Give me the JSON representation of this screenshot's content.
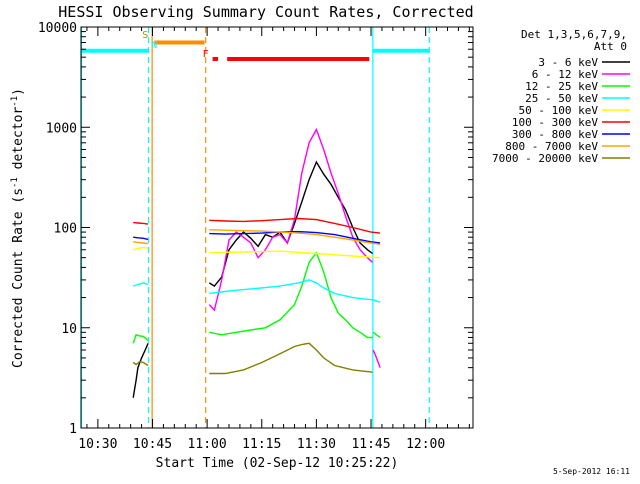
{
  "chart_data": {
    "type": "line",
    "title": "HESSI Observing Summary Count Rates, Corrected",
    "xlabel": "Start Time (02-Sep-12 10:25:22)",
    "ylabel": "Corrected Count Rate (s⁻¹ detector⁻¹)",
    "ylabel_parts": [
      "Corrected Count Rate (s",
      "-1",
      " detector",
      "-1",
      ")"
    ],
    "x_range_min": [
      25.37,
      133.0
    ],
    "ylim": [
      1,
      10000
    ],
    "y_scale": "log",
    "x_ticks": [
      {
        "min": 30,
        "label": "10:30"
      },
      {
        "min": 45,
        "label": "10:45"
      },
      {
        "min": 60,
        "label": "11:00"
      },
      {
        "min": 75,
        "label": "11:15"
      },
      {
        "min": 90,
        "label": "11:30"
      },
      {
        "min": 105,
        "label": "11:45"
      },
      {
        "min": 120,
        "label": "12:00"
      }
    ],
    "y_ticks": [
      {
        "value": 1,
        "label": "1"
      },
      {
        "value": 10,
        "label": "10"
      },
      {
        "value": 100,
        "label": "100"
      },
      {
        "value": 1000,
        "label": "1000"
      },
      {
        "value": 10000,
        "label": "10000"
      }
    ],
    "legend_title": [
      "Det 1,3,5,6,7,9,",
      "Att 0"
    ],
    "legend_position": "right",
    "footer": "5-Sep-2012 16:11",
    "series": [
      {
        "name": "3 - 6 keV",
        "color": "#000000",
        "segments": [
          {
            "x": [
              39.7,
              40.5,
              41.0,
              42.0,
              43.0,
              43.8
            ],
            "y": [
              2,
              3,
              4,
              5,
              6,
              7
            ]
          },
          {
            "x": [
              60.6,
              62,
              64,
              66,
              68,
              70,
              72,
              74,
              76,
              78,
              80,
              82,
              84,
              86,
              88,
              90,
              92,
              94,
              96,
              98,
              100,
              102,
              104,
              105.4
            ],
            "y": [
              28,
              26,
              32,
              60,
              75,
              90,
              78,
              65,
              85,
              80,
              90,
              70,
              110,
              180,
              300,
              450,
              340,
              270,
              200,
              150,
              100,
              70,
              60,
              55
            ]
          }
        ]
      },
      {
        "name": "6 - 12 keV",
        "color": "#ff00ff",
        "segments": [
          {
            "x": [
              60.6,
              62,
              64,
              66,
              68,
              70,
              72,
              74,
              76,
              78,
              80,
              82,
              84,
              86,
              88,
              90,
              92,
              94,
              96,
              98,
              100,
              102,
              104,
              105.4
            ],
            "y": [
              17,
              15,
              30,
              75,
              90,
              80,
              70,
              50,
              60,
              80,
              85,
              70,
              120,
              350,
              700,
              950,
              600,
              350,
              220,
              130,
              80,
              60,
              50,
              45
            ]
          },
          {
            "x": [
              105.6,
              106.5,
              107.5
            ],
            "y": [
              6,
              5,
              4
            ]
          }
        ]
      },
      {
        "name": "12 - 25 keV",
        "color": "#00ff00",
        "segments": [
          {
            "x": [
              39.7,
              40.5,
              41.5,
              42.5,
              43.8
            ],
            "y": [
              7,
              8.5,
              8.3,
              8.2,
              7.5
            ]
          },
          {
            "x": [
              60.6,
              64,
              68,
              72,
              76,
              80,
              84,
              86,
              88,
              90,
              92,
              94,
              96,
              98,
              100,
              102,
              104,
              105.4
            ],
            "y": [
              9,
              8.5,
              9,
              9.5,
              10,
              12,
              17,
              26,
              45,
              56,
              36,
              20,
              14,
              12,
              10,
              9,
              8,
              8
            ]
          },
          {
            "x": [
              105.6,
              107.5
            ],
            "y": [
              9,
              8
            ]
          }
        ]
      },
      {
        "name": "25 - 50 keV",
        "color": "#00ffff",
        "segments": [
          {
            "x": [
              39.7,
              41,
              42.5,
              43.8
            ],
            "y": [
              26,
              27,
              28,
              27
            ]
          },
          {
            "x": [
              60.6,
              65,
              70,
              75,
              80,
              85,
              88,
              90,
              92,
              95,
              100,
              105.4
            ],
            "y": [
              22,
              23,
              24,
              25,
              26,
              28,
              30,
              28,
              25,
              22,
              20,
              19
            ]
          },
          {
            "x": [
              105.6,
              107.5
            ],
            "y": [
              19,
              18
            ]
          }
        ]
      },
      {
        "name": "50 - 100 keV",
        "color": "#ffff00",
        "segments": [
          {
            "x": [
              39.7,
              41,
              42.5,
              43.8
            ],
            "y": [
              60,
              62,
              63,
              62
            ]
          },
          {
            "x": [
              60.6,
              70,
              80,
              90,
              100,
              107.5
            ],
            "y": [
              56,
              57,
              58,
              55,
              52,
              50
            ]
          }
        ]
      },
      {
        "name": "100 - 300 keV",
        "color": "#ff0000",
        "segments": [
          {
            "x": [
              39.7,
              41,
              42.5,
              43.8
            ],
            "y": [
              112,
              111,
              110,
              108
            ]
          },
          {
            "x": [
              60.6,
              65,
              70,
              75,
              80,
              85,
              90,
              95,
              100,
              105,
              107.5
            ],
            "y": [
              118,
              116,
              115,
              117,
              120,
              123,
              120,
              110,
              100,
              90,
              88
            ]
          }
        ]
      },
      {
        "name": "300 - 800 keV",
        "color": "#0000ff",
        "segments": [
          {
            "x": [
              39.7,
              41,
              42.5,
              43.8
            ],
            "y": [
              80,
              79,
              78,
              76
            ]
          },
          {
            "x": [
              60.6,
              65,
              70,
              75,
              80,
              85,
              90,
              95,
              100,
              105,
              107.5
            ],
            "y": [
              87,
              86,
              87,
              88,
              90,
              91,
              89,
              85,
              78,
              72,
              70
            ]
          }
        ]
      },
      {
        "name": "800 - 7000 keV",
        "color": "#ffa500",
        "segments": [
          {
            "x": [
              39.7,
              41,
              42.5,
              43.8
            ],
            "y": [
              72,
              71,
              70,
              69
            ]
          },
          {
            "x": [
              60.6,
              65,
              70,
              75,
              80,
              85,
              90,
              95,
              100,
              105,
              107.5
            ],
            "y": [
              95,
              94,
              93,
              92,
              90,
              88,
              85,
              80,
              75,
              70,
              68
            ]
          }
        ]
      },
      {
        "name": "7000 - 20000 keV",
        "color": "#808000",
        "segments": [
          {
            "x": [
              39.7,
              40.5,
              41.5,
              42.5,
              43.8
            ],
            "y": [
              4.5,
              4.3,
              4.6,
              4.5,
              4.2
            ]
          },
          {
            "x": [
              60.6,
              65,
              70,
              75,
              80,
              84,
              86,
              88,
              90,
              92,
              95,
              100,
              105.4
            ],
            "y": [
              3.5,
              3.5,
              3.8,
              4.5,
              5.5,
              6.5,
              6.8,
              7,
              6,
              5,
              4.2,
              3.8,
              3.6
            ]
          }
        ]
      }
    ],
    "markers": [
      {
        "kind": "vline",
        "x": 25.5,
        "color": "#00ffff",
        "style": "solid"
      },
      {
        "kind": "vline",
        "x": 43.9,
        "color": "#00ffff",
        "style": "dashed"
      },
      {
        "kind": "vline",
        "x": 44.9,
        "color": "#ff8c00",
        "style": "solid"
      },
      {
        "kind": "vline",
        "x": 59.6,
        "color": "#ff8c00",
        "style": "dashed"
      },
      {
        "kind": "vline",
        "x": 105.5,
        "color": "#00ffff",
        "style": "solid"
      },
      {
        "kind": "vline",
        "x": 121.0,
        "color": "#00ffff",
        "style": "dashed"
      },
      {
        "kind": "hbar",
        "x": [
          25.5,
          43.9
        ],
        "y": 5800,
        "color": "#00ffff"
      },
      {
        "kind": "hbar",
        "x": [
          105.5,
          121.0
        ],
        "y": 5800,
        "color": "#00ffff"
      },
      {
        "kind": "hbar",
        "x": [
          45.5,
          59.3
        ],
        "y": 7000,
        "color": "#ff8c00"
      },
      {
        "kind": "hbar",
        "x": [
          61.5,
          63.0
        ],
        "y": 4800,
        "color": "#ff0000"
      },
      {
        "kind": "hbar",
        "x": [
          65.5,
          104.5
        ],
        "y": 4800,
        "color": "#ff0000"
      }
    ],
    "flags": [
      {
        "label": "S",
        "x": 43.0,
        "y": 7800,
        "color": "#999900"
      },
      {
        "label": "N",
        "x": 45.5,
        "y": 6200,
        "color": "#00ffff"
      },
      {
        "label": "F",
        "x": 59.6,
        "y": 5000,
        "color": "#ff0000"
      }
    ]
  }
}
